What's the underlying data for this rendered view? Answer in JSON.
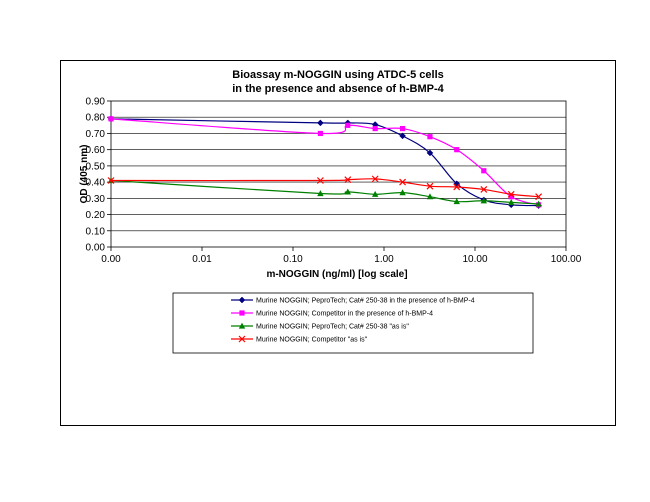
{
  "chart_data": {
    "type": "line",
    "title": [
      "Bioassay m-NOGGIN using ATDC-5 cells",
      "in the presence and absence of h-BMP-4"
    ],
    "xlabel": "m-NOGGIN (ng/ml) [log scale]",
    "ylabel": "OD (405 nm)",
    "xscale": "log",
    "xlim": [
      0.001,
      100
    ],
    "ylim": [
      0,
      0.9
    ],
    "x_tick_labels": [
      "0.00",
      "0.01",
      "0.10",
      "1.00",
      "10.00",
      "100.00"
    ],
    "y_tick_labels": [
      "0.00",
      "0.10",
      "0.20",
      "0.30",
      "0.40",
      "0.50",
      "0.60",
      "0.70",
      "0.80",
      "0.90"
    ],
    "grid": "horizontal",
    "legend_position": "bottom",
    "series": [
      {
        "name": "Murine NOGGIN; PeproTech; Cat# 250-38 in the presence of h-BMP-4",
        "color": "#000080",
        "marker": "diamond",
        "x": [
          0.001,
          0.2,
          0.4,
          0.8,
          1.6,
          3.2,
          6.3,
          12.5,
          25,
          50
        ],
        "y": [
          0.79,
          0.765,
          0.765,
          0.755,
          0.685,
          0.58,
          0.39,
          0.29,
          0.26,
          0.255
        ]
      },
      {
        "name": "Murine NOGGIN; Competitor in the presence of h-BMP-4",
        "color": "#FF00FF",
        "marker": "square",
        "x": [
          0.001,
          0.2,
          0.4,
          0.8,
          1.6,
          3.2,
          6.3,
          12.5,
          25,
          50
        ],
        "y": [
          0.79,
          0.7,
          0.75,
          0.73,
          0.73,
          0.68,
          0.6,
          0.47,
          0.31,
          0.26
        ]
      },
      {
        "name": "Murine NOGGIN; PeproTech; Cat# 250-38 \"as is\"",
        "color": "#008000",
        "marker": "triangle",
        "x": [
          0.001,
          0.2,
          0.4,
          0.8,
          1.6,
          3.2,
          6.3,
          12.5,
          25,
          50
        ],
        "y": [
          0.41,
          0.33,
          0.34,
          0.325,
          0.335,
          0.31,
          0.28,
          0.285,
          0.275,
          0.265
        ]
      },
      {
        "name": "Murine NOGGIN; Competitor \"as is\"",
        "color": "#FF0000",
        "marker": "x",
        "x": [
          0.001,
          0.2,
          0.4,
          0.8,
          1.6,
          3.2,
          6.3,
          12.5,
          25,
          50
        ],
        "y": [
          0.41,
          0.41,
          0.415,
          0.42,
          0.4,
          0.375,
          0.37,
          0.355,
          0.325,
          0.31
        ]
      }
    ]
  }
}
